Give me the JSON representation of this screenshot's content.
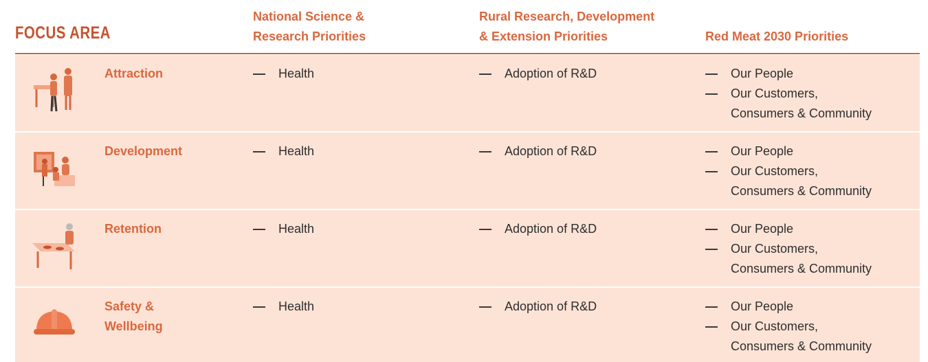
{
  "header": {
    "focus_area": "FOCUS AREA",
    "columns": [
      [
        "National Science &",
        "Research Priorities"
      ],
      [
        "Rural Research, Development",
        "& Extension Priorities"
      ],
      [
        "Red Meat 2030 Priorities"
      ]
    ]
  },
  "rows": [
    {
      "focus": [
        "Attraction"
      ],
      "national": [
        [
          "Health"
        ]
      ],
      "rural": [
        [
          "Adoption of R&D"
        ]
      ],
      "red_meat": [
        [
          "Our People"
        ],
        [
          "Our Customers,",
          "Consumers & Community"
        ]
      ]
    },
    {
      "focus": [
        "Development"
      ],
      "national": [
        [
          "Health"
        ]
      ],
      "rural": [
        [
          "Adoption of R&D"
        ]
      ],
      "red_meat": [
        [
          "Our People"
        ],
        [
          "Our Customers,",
          "Consumers & Community"
        ]
      ]
    },
    {
      "focus": [
        "Retention"
      ],
      "national": [
        [
          "Health"
        ]
      ],
      "rural": [
        [
          "Adoption of R&D"
        ]
      ],
      "red_meat": [
        [
          "Our People"
        ],
        [
          "Our Customers,",
          "Consumers & Community"
        ]
      ]
    },
    {
      "focus": [
        "Safety &",
        "Wellbeing"
      ],
      "national": [
        [
          "Health"
        ]
      ],
      "rural": [
        [
          "Adoption of R&D"
        ]
      ],
      "red_meat": [
        [
          "Our People"
        ],
        [
          "Our Customers,",
          "Consumers & Community"
        ]
      ]
    }
  ]
}
